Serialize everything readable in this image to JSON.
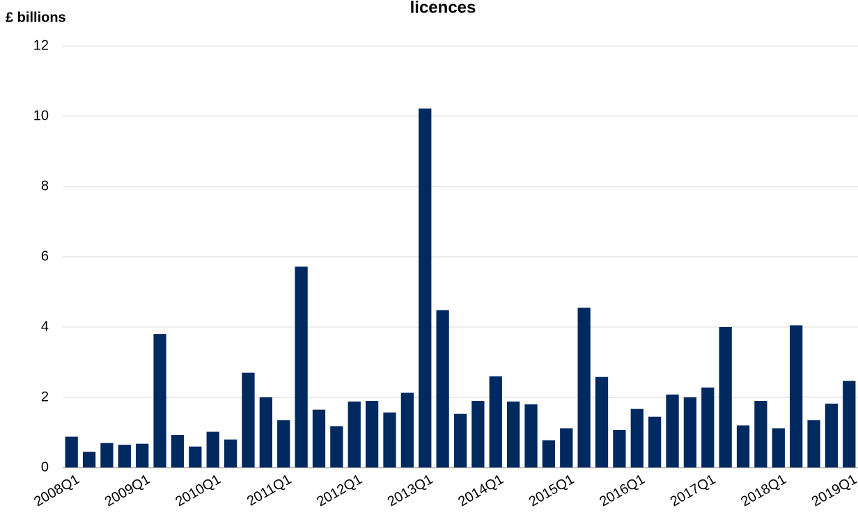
{
  "chart_data": {
    "type": "bar",
    "title": "licences",
    "y_label": "£ billions",
    "categories": [
      "2008Q1",
      null,
      null,
      null,
      "2009Q1",
      null,
      null,
      null,
      "2010Q1",
      null,
      null,
      null,
      "2011Q1",
      null,
      null,
      null,
      "2012Q1",
      null,
      null,
      null,
      "2013Q1",
      null,
      null,
      null,
      "2014Q1",
      null,
      null,
      null,
      "2015Q1",
      null,
      null,
      null,
      "2016Q1",
      null,
      null,
      null,
      "2017Q1",
      null,
      null,
      null,
      "2018Q1",
      null,
      null,
      null,
      "2019Q1"
    ],
    "values": [
      0.88,
      0.45,
      0.7,
      0.65,
      0.68,
      3.8,
      0.93,
      0.6,
      1.02,
      0.8,
      2.7,
      2.0,
      1.35,
      5.72,
      1.65,
      1.18,
      1.88,
      1.9,
      1.57,
      2.13,
      10.22,
      4.48,
      1.53,
      1.9,
      2.6,
      1.88,
      1.8,
      0.78,
      1.12,
      4.55,
      2.58,
      1.07,
      1.67,
      1.45,
      2.08,
      2.0,
      2.28,
      4.0,
      1.2,
      1.9,
      1.12,
      4.05,
      1.35,
      1.82,
      2.47
    ],
    "color": "#002960",
    "ylim": [
      0,
      12
    ],
    "yticks": [
      0,
      2,
      4,
      6,
      8,
      10,
      12
    ],
    "grid": true
  }
}
